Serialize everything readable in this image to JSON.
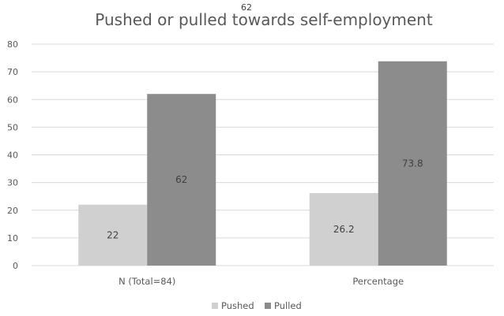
{
  "stray_label": "62",
  "chart_data": {
    "type": "bar",
    "title": "Pushed or pulled towards self-employment",
    "xlabel": "",
    "ylabel": "",
    "categories": [
      "N (Total=84)",
      "Percentage"
    ],
    "series": [
      {
        "name": "Pushed",
        "values": [
          22,
          26.2
        ],
        "labels": [
          "22",
          "26.2"
        ],
        "color": "#d0d0d0"
      },
      {
        "name": "Pulled",
        "values": [
          62,
          73.8
        ],
        "labels": [
          "62",
          "73.8"
        ],
        "color": "#8c8c8c"
      }
    ],
    "ylim": [
      0,
      80
    ],
    "yticks": [
      "0",
      "10",
      "20",
      "30",
      "40",
      "50",
      "60",
      "70",
      "80"
    ],
    "grid": true,
    "legend_position": "bottom"
  }
}
